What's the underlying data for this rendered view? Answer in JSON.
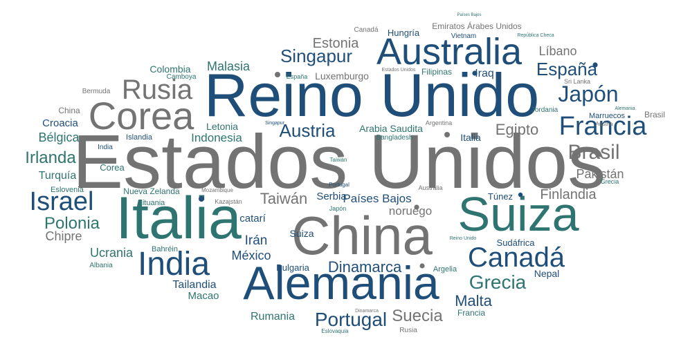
{
  "palette": {
    "gray": "#737373",
    "navy": "#1f4e79",
    "teal": "#2e7470",
    "light_gray": "#a0a0a0"
  },
  "dot_glyph": "●",
  "words": [
    {
      "text": "Estados Unidos",
      "color": "gray",
      "rank": 1
    },
    {
      "text": "Reino Unido",
      "color": "navy",
      "rank": 2
    },
    {
      "text": "Italia",
      "color": "teal",
      "rank": 3
    },
    {
      "text": "China",
      "color": "gray",
      "rank": 4
    },
    {
      "text": "Alemania",
      "color": "navy",
      "rank": 5
    },
    {
      "text": "Suiza",
      "color": "teal",
      "rank": 6
    },
    {
      "text": "Australia",
      "color": "navy",
      "rank": 7
    },
    {
      "text": "Corea",
      "color": "gray",
      "rank": 8
    },
    {
      "text": "India",
      "color": "navy",
      "rank": 9
    },
    {
      "text": "Canadá",
      "color": "navy",
      "rank": 10
    },
    {
      "text": "Francia",
      "color": "navy",
      "rank": 11
    },
    {
      "text": "Rusia",
      "color": "gray",
      "rank": 12
    },
    {
      "text": "Japón",
      "color": "navy",
      "rank": 13
    },
    {
      "text": "Israel",
      "color": "navy",
      "rank": 14
    },
    {
      "text": "Grecia",
      "color": "teal",
      "rank": 15
    },
    {
      "text": "Portugal",
      "color": "navy",
      "rank": 16
    },
    {
      "text": "Brasil",
      "color": "gray",
      "rank": 17
    },
    {
      "text": "España",
      "color": "navy",
      "rank": 18
    },
    {
      "text": "Singapur",
      "color": "navy",
      "rank": 19
    },
    {
      "text": "Austria",
      "color": "navy",
      "rank": 20
    },
    {
      "text": "Dinamarca",
      "color": "navy",
      "rank": 21
    },
    {
      "text": "Suecia",
      "color": "gray",
      "rank": 22
    },
    {
      "text": "Polonia",
      "color": "teal",
      "rank": 23
    },
    {
      "text": "Irlanda",
      "color": "teal",
      "rank": 24
    },
    {
      "text": "Estonia",
      "color": "gray",
      "rank": 25
    },
    {
      "text": "Egipto",
      "color": "gray",
      "rank": 26
    },
    {
      "text": "Malta",
      "color": "navy",
      "rank": 27
    },
    {
      "text": "Taiwán",
      "color": "gray",
      "rank": 28
    },
    {
      "text": "Finlandia",
      "color": "gray",
      "rank": 29
    },
    {
      "text": "Pakistán",
      "color": "gray",
      "rank": 30
    },
    {
      "text": "Malasia",
      "color": "teal",
      "rank": 31
    },
    {
      "text": "Indonesia",
      "color": "teal",
      "rank": 32
    },
    {
      "text": "Ucrania",
      "color": "teal",
      "rank": 33
    },
    {
      "text": "México",
      "color": "navy",
      "rank": 34
    },
    {
      "text": "Irán",
      "color": "navy",
      "rank": 35
    },
    {
      "text": "Chipre",
      "color": "gray",
      "rank": 36
    },
    {
      "text": "Líbano",
      "color": "gray",
      "rank": 37
    },
    {
      "text": "Tailandia",
      "color": "navy",
      "rank": 38
    },
    {
      "text": "Bélgica",
      "color": "teal",
      "rank": 39
    },
    {
      "text": "Turquía",
      "color": "teal",
      "rank": 40
    },
    {
      "text": "Rumania",
      "color": "teal",
      "rank": 41
    },
    {
      "text": "Arabia Saudita",
      "color": "teal",
      "rank": 42
    },
    {
      "text": "Países Bajos",
      "color": "navy",
      "rank": 43
    },
    {
      "text": "noruego",
      "color": "gray",
      "rank": 44
    },
    {
      "text": "Macao",
      "color": "teal",
      "rank": 45
    },
    {
      "text": "Croacia",
      "color": "navy",
      "rank": 46
    },
    {
      "text": "Iraq",
      "color": "navy",
      "rank": 47
    },
    {
      "text": "Luxemburgo",
      "color": "gray",
      "rank": 48
    },
    {
      "text": "Serbia",
      "color": "navy",
      "rank": 49
    },
    {
      "text": "Colombia",
      "color": "teal",
      "rank": 50
    },
    {
      "text": "Letonia",
      "color": "teal",
      "rank": 51
    },
    {
      "text": "Nepal",
      "color": "navy",
      "rank": 52
    },
    {
      "text": "catarí",
      "color": "navy",
      "rank": 53
    },
    {
      "text": "Suiza",
      "color": "navy",
      "rank": 54
    },
    {
      "text": "Italia",
      "color": "navy",
      "rank": 55
    },
    {
      "text": "Túnez",
      "color": "navy",
      "rank": 56
    },
    {
      "text": "Corea",
      "color": "teal",
      "rank": 57
    },
    {
      "text": "Sudáfrica",
      "color": "navy",
      "rank": 58
    },
    {
      "text": "Hungría",
      "color": "navy",
      "rank": 59
    },
    {
      "text": "Bulgaria",
      "color": "navy",
      "rank": 60
    },
    {
      "text": "Francia",
      "color": "teal",
      "rank": 61
    },
    {
      "text": "China",
      "color": "gray",
      "rank": 62
    },
    {
      "text": "Filipinas",
      "color": "teal",
      "rank": 63
    },
    {
      "text": "Nueva Zelanda",
      "color": "teal",
      "rank": 64
    },
    {
      "text": "Eslovenia",
      "color": "teal",
      "rank": 65
    },
    {
      "text": "Lituania",
      "color": "teal",
      "rank": 66
    },
    {
      "text": "Islandia",
      "color": "navy",
      "rank": 67
    },
    {
      "text": "Albania",
      "color": "teal",
      "rank": 68
    },
    {
      "text": "Argelia",
      "color": "teal",
      "rank": 69
    },
    {
      "text": "Brasil",
      "color": "gray",
      "rank": 70
    },
    {
      "text": "Bahréin",
      "color": "teal",
      "rank": 71
    },
    {
      "text": "Marruecos",
      "color": "navy",
      "rank": 72
    },
    {
      "text": "Jordania",
      "color": "teal",
      "rank": 73
    },
    {
      "text": "Emiratos Árabes Unidos",
      "color": "gray",
      "rank": 74
    },
    {
      "text": "Vietnam",
      "color": "navy",
      "rank": 75
    },
    {
      "text": "Canadá",
      "color": "gray",
      "rank": 76
    },
    {
      "text": "Camboya",
      "color": "teal",
      "rank": 77
    },
    {
      "text": "España",
      "color": "teal",
      "rank": 78
    },
    {
      "text": "India",
      "color": "navy",
      "rank": 79
    },
    {
      "text": "Bermuda",
      "color": "gray",
      "rank": 80
    },
    {
      "text": "Sri Lanka",
      "color": "gray",
      "rank": 81
    },
    {
      "text": "Bangladesh",
      "color": "teal",
      "rank": 82
    },
    {
      "text": "Argentina",
      "color": "gray",
      "rank": 83
    },
    {
      "text": "Japón",
      "color": "teal",
      "rank": 84
    },
    {
      "text": "Rusia",
      "color": "gray",
      "rank": 85
    },
    {
      "text": "Grecia",
      "color": "teal",
      "rank": 86
    },
    {
      "text": "Austria",
      "color": "gray",
      "rank": 87
    },
    {
      "text": "Kazajstán",
      "color": "gray",
      "rank": 88
    },
    {
      "text": "Australia",
      "color": "gray",
      "rank": 89
    },
    {
      "text": "Taiwán",
      "color": "teal",
      "rank": 90
    },
    {
      "text": "Portugal",
      "color": "navy",
      "rank": 91
    },
    {
      "text": "Mozambique",
      "color": "gray",
      "rank": 92
    },
    {
      "text": "Singapur",
      "color": "navy",
      "rank": 93
    },
    {
      "text": "Estados Unidos",
      "color": "gray",
      "rank": 94
    },
    {
      "text": "Alemania",
      "color": "teal",
      "rank": 95
    },
    {
      "text": "Reino Unido",
      "color": "teal",
      "rank": 96
    },
    {
      "text": "Dinamarca",
      "color": "gray",
      "rank": 97
    },
    {
      "text": "Eslovaquia",
      "color": "teal",
      "rank": 98
    },
    {
      "text": "República Checa",
      "color": "teal",
      "rank": 99
    },
    {
      "text": "Países Bajos",
      "color": "teal",
      "rank": 100
    }
  ]
}
